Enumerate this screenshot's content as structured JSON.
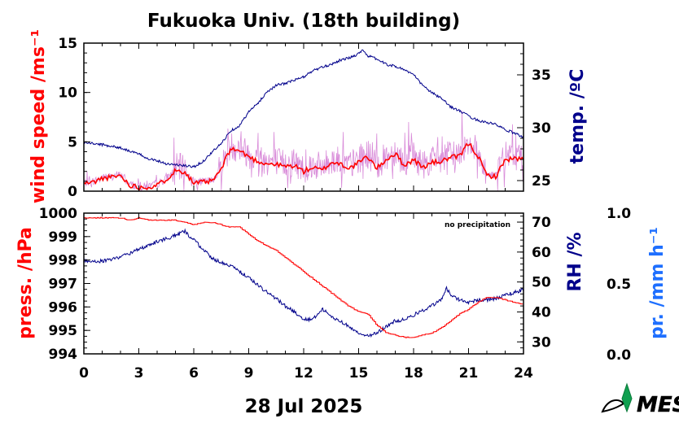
{
  "colors": {
    "wind": "#ff0000",
    "gust": "#cc66cc",
    "temp": "#00008b",
    "press": "#ff0000",
    "rh": "#00008b",
    "precip": "#1e6fff"
  },
  "logo_text": "MES",
  "chart_data": [
    {
      "type": "line",
      "title": "Fukuoka Univ. (18th building)",
      "xlabel": "28 Jul 2025",
      "xlim": [
        0,
        24
      ],
      "xticks": [
        0,
        3,
        6,
        9,
        12,
        15,
        18,
        21,
        24
      ],
      "y_left": {
        "label": "wind speed /ms⁻¹",
        "lim": [
          0,
          15
        ],
        "ticks": [
          0,
          5,
          10,
          15
        ]
      },
      "y_right": {
        "label": "temp. /ºC",
        "lim": [
          24,
          38
        ],
        "ticks": [
          25,
          30,
          35
        ]
      },
      "series": [
        {
          "name": "wind speed",
          "axis": "left",
          "x": [
            0,
            0.5,
            1,
            1.5,
            2,
            2.5,
            3,
            3.5,
            4,
            4.5,
            5,
            5.5,
            6,
            6.5,
            7,
            7.5,
            8,
            8.5,
            9,
            9.5,
            10,
            10.5,
            11,
            11.5,
            12,
            12.5,
            13,
            13.5,
            14,
            14.5,
            15,
            15.5,
            16,
            16.5,
            17,
            17.5,
            18,
            18.5,
            19,
            19.5,
            20,
            20.5,
            21,
            21.5,
            22,
            22.5,
            23,
            23.5,
            24
          ],
          "values": [
            0.8,
            0.9,
            1.3,
            1.4,
            1.6,
            0.6,
            0.4,
            0.4,
            0.6,
            1.2,
            2.1,
            2.0,
            0.8,
            0.9,
            1.0,
            2.2,
            4.3,
            4.1,
            3.5,
            3.0,
            2.8,
            2.7,
            2.5,
            2.6,
            2.0,
            2.4,
            2.1,
            2.9,
            2.8,
            2.3,
            2.9,
            3.5,
            2.3,
            3.2,
            3.8,
            2.6,
            3.2,
            2.4,
            2.9,
            3.0,
            3.4,
            3.5,
            4.9,
            3.6,
            1.6,
            1.5,
            3.2,
            3.3,
            3.2
          ]
        },
        {
          "name": "temperature",
          "axis": "right",
          "x": [
            0,
            1,
            2,
            3,
            3.5,
            4,
            4.5,
            5,
            5.5,
            6,
            6.5,
            7,
            7.5,
            8,
            8.5,
            9,
            9.5,
            10,
            10.5,
            11,
            11.5,
            12,
            12.5,
            13,
            13.5,
            14,
            14.5,
            15,
            15.2,
            15.5,
            16,
            16.5,
            17,
            17.5,
            18,
            18.5,
            19,
            19.5,
            20,
            20.5,
            21,
            21.5,
            22,
            22.5,
            23,
            23.5,
            24
          ],
          "values": [
            28.6,
            28.4,
            28.1,
            27.5,
            27.1,
            26.9,
            26.6,
            26.5,
            26.4,
            26.3,
            26.8,
            27.7,
            28.5,
            29.7,
            30.2,
            31.5,
            32.3,
            33.4,
            34.0,
            34.2,
            34.5,
            34.8,
            35.4,
            35.7,
            36.0,
            36.4,
            36.6,
            37.0,
            37.4,
            36.8,
            36.5,
            36.0,
            35.8,
            35.5,
            35.0,
            34.0,
            33.3,
            32.8,
            32.0,
            31.6,
            31.1,
            30.7,
            30.5,
            30.3,
            29.8,
            29.5,
            29.1
          ]
        }
      ]
    },
    {
      "type": "line",
      "note": "no precipitation",
      "xlim": [
        0,
        24
      ],
      "xticks": [
        0,
        3,
        6,
        9,
        12,
        15,
        18,
        21,
        24
      ],
      "y_left": {
        "label": "press. /hPa",
        "lim": [
          994,
          1000
        ],
        "ticks": [
          994,
          995,
          996,
          997,
          998,
          999,
          1000
        ]
      },
      "y_right": {
        "label": "RH /%",
        "lim": [
          26,
          73
        ],
        "ticks": [
          30,
          40,
          50,
          60,
          70
        ]
      },
      "y_far_right": {
        "label": "pr. /mm h⁻¹",
        "lim": [
          0,
          1
        ],
        "ticks": [
          "1.0",
          "0.5",
          "0.0"
        ]
      },
      "series": [
        {
          "name": "pressure",
          "axis": "left",
          "x": [
            0,
            0.5,
            1,
            1.5,
            2,
            2.5,
            3,
            3.5,
            4,
            4.5,
            5,
            5.5,
            6,
            6.5,
            7,
            7.5,
            8,
            8.5,
            9,
            9.5,
            10,
            10.5,
            11,
            11.5,
            12,
            12.5,
            13,
            13.5,
            14,
            14.5,
            15,
            15.5,
            16,
            16.5,
            17,
            17.5,
            18,
            18.5,
            19,
            19.5,
            20,
            20.5,
            21,
            21.5,
            22,
            22.5,
            23,
            23.5,
            24
          ],
          "values": [
            999.8,
            999.8,
            999.8,
            999.8,
            999.8,
            999.7,
            999.8,
            999.7,
            999.7,
            999.7,
            999.7,
            999.6,
            999.5,
            999.6,
            999.6,
            999.5,
            999.4,
            999.4,
            999.1,
            998.8,
            998.6,
            998.4,
            998.1,
            997.8,
            997.5,
            997.2,
            996.9,
            996.6,
            996.3,
            996.0,
            995.8,
            995.7,
            995.2,
            994.9,
            994.8,
            994.7,
            994.7,
            994.8,
            994.9,
            995.1,
            995.4,
            995.7,
            995.9,
            996.2,
            996.4,
            996.4,
            996.3,
            996.2,
            996.1
          ]
        },
        {
          "name": "relative humidity",
          "axis": "right",
          "x": [
            0,
            0.5,
            1,
            1.5,
            2,
            2.5,
            3,
            3.5,
            4,
            4.5,
            5,
            5.5,
            6,
            6.5,
            7,
            7.5,
            8,
            8.5,
            9,
            9.5,
            10,
            10.5,
            11,
            11.5,
            12,
            12.5,
            13,
            13.5,
            14,
            14.5,
            15,
            15.5,
            16,
            16.5,
            17,
            17.5,
            18,
            18.5,
            19,
            19.5,
            19.8,
            20,
            20.5,
            21,
            21.5,
            22,
            22.5,
            23,
            23.5,
            24
          ],
          "values": [
            57,
            57,
            57,
            57.5,
            58.5,
            59.5,
            61,
            62,
            63.5,
            64.5,
            65.5,
            67,
            64,
            61,
            58,
            56.5,
            55.5,
            53.5,
            51.5,
            49,
            46.5,
            44.5,
            42,
            40,
            37.5,
            37.5,
            41,
            38.5,
            37,
            35,
            33,
            32,
            33,
            35,
            37,
            37.5,
            39,
            40.5,
            42,
            44,
            48,
            46,
            44,
            43,
            44,
            44,
            44.5,
            45.5,
            46.5,
            47.5
          ]
        }
      ]
    }
  ]
}
